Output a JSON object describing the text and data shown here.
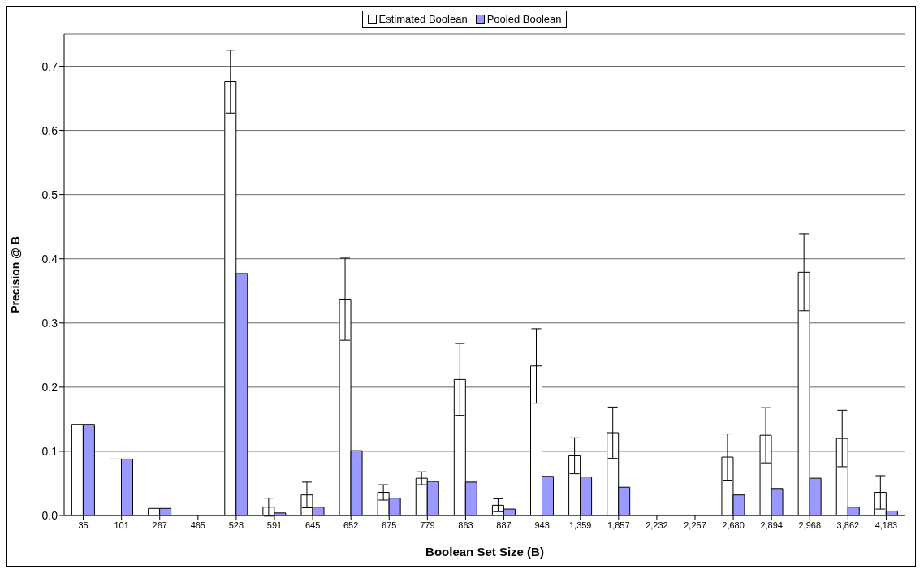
{
  "chart_data": {
    "type": "bar",
    "xlabel": "Boolean Set Size (B)",
    "ylabel": "Precision @ B",
    "categories": [
      "35",
      "101",
      "267",
      "465",
      "528",
      "591",
      "645",
      "652",
      "675",
      "779",
      "863",
      "887",
      "943",
      "1,359",
      "1,857",
      "2,232",
      "2,257",
      "2,680",
      "2,894",
      "2,968",
      "3,862",
      "4,183"
    ],
    "series": [
      {
        "name": "Estimated Boolean",
        "color": "#ffffff",
        "values": [
          0.142,
          0.088,
          0.011,
          0,
          0.676,
          0.013,
          0.032,
          0.337,
          0.036,
          0.058,
          0.212,
          0.016,
          0.233,
          0.093,
          0.129,
          0,
          0,
          0.091,
          0.125,
          0.379,
          0.12,
          0.036
        ],
        "errors": [
          0,
          0,
          0,
          0,
          0.049,
          0.014,
          0.02,
          0.064,
          0.012,
          0.01,
          0.056,
          0.01,
          0.058,
          0.028,
          0.04,
          0,
          0,
          0.036,
          0.043,
          0.06,
          0.044,
          0.026
        ]
      },
      {
        "name": "Pooled Boolean",
        "color": "#9999ff",
        "values": [
          0.142,
          0.088,
          0.011,
          0,
          0.377,
          0.004,
          0.013,
          0.101,
          0.027,
          0.053,
          0.052,
          0.01,
          0.061,
          0.06,
          0.044,
          0,
          0,
          0.032,
          0.042,
          0.058,
          0.013,
          0.007
        ]
      }
    ],
    "ylim": [
      0,
      0.75
    ],
    "yticks": [
      {
        "value": 0,
        "label": "0.0"
      },
      0.1,
      0.2,
      0.3,
      0.4,
      0.5,
      0.6,
      0.7
    ],
    "grid": "y",
    "legend": "top"
  }
}
